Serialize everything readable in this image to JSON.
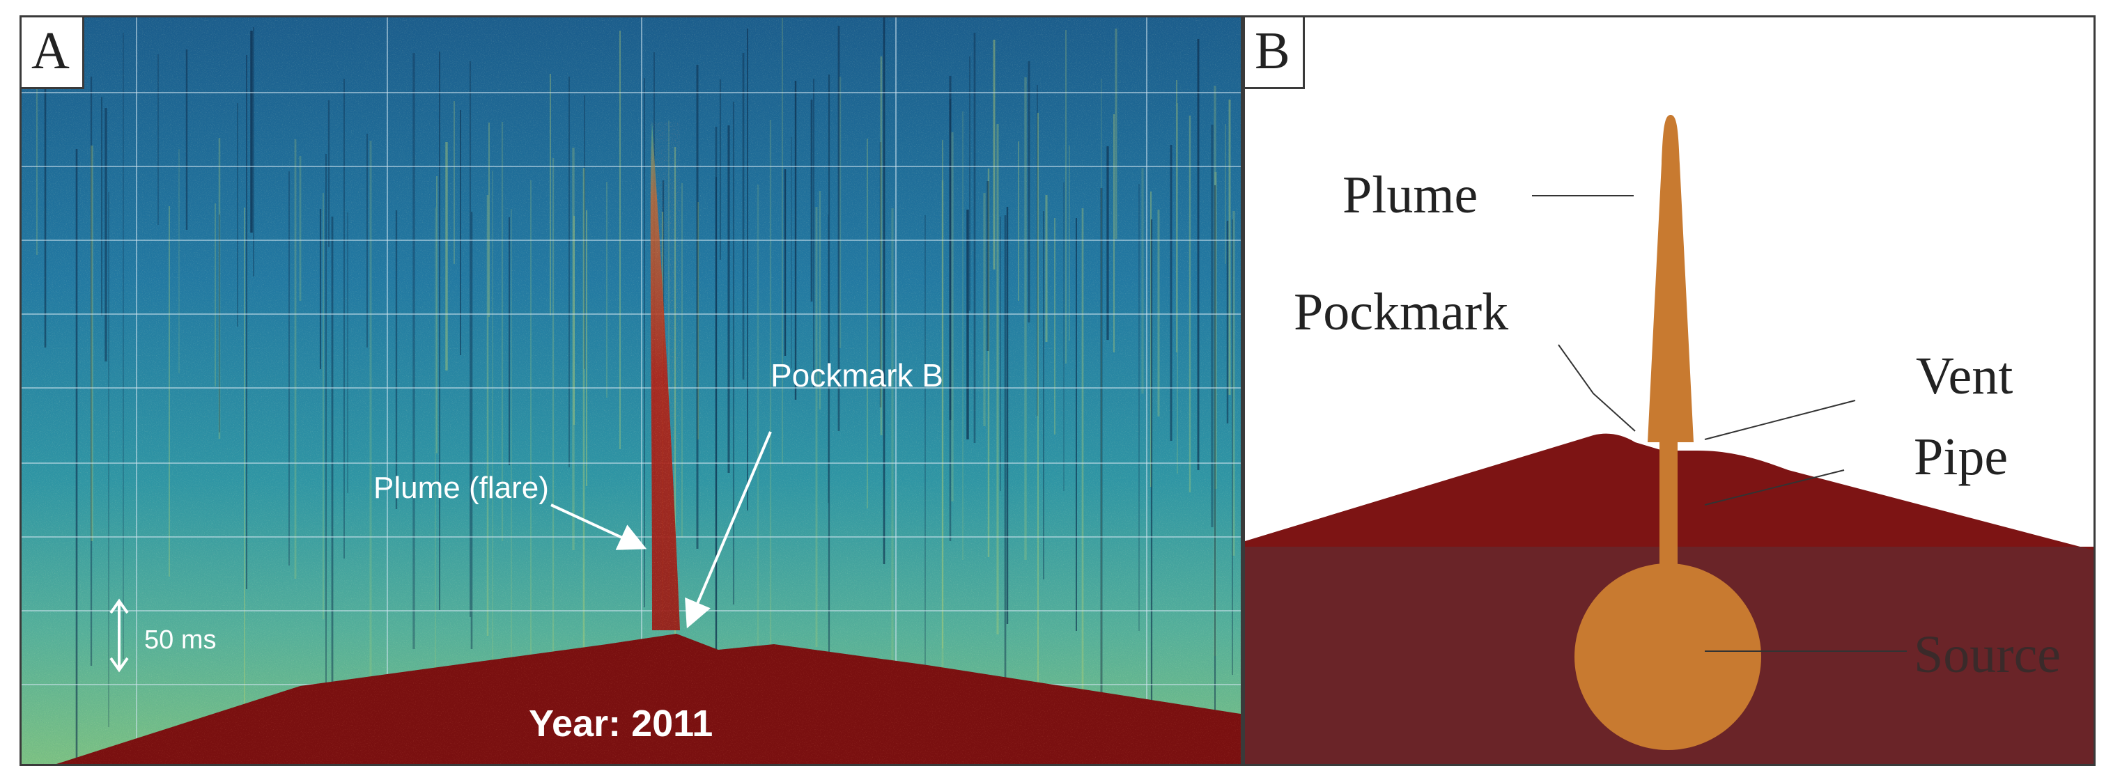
{
  "panel_a": {
    "label": "A",
    "annotations": {
      "plume": "Plume (flare)",
      "pockmark": "Pockmark B",
      "scale": "50 ms",
      "year": "Year: 2011"
    }
  },
  "panel_b": {
    "label": "B",
    "labels": {
      "plume": "Plume",
      "pockmark": "Pockmark",
      "vent": "Vent",
      "pipe": "Pipe",
      "source": "Source"
    }
  },
  "colors": {
    "water_deep": "#1a5a8a",
    "water_mid": "#2a86a8",
    "water_shallow": "#4fae9c",
    "seabed": "#7a1010",
    "plume_fill": "#c87a30",
    "sediment_upper": "#7d1414",
    "sediment_lower": "#6a2428"
  }
}
